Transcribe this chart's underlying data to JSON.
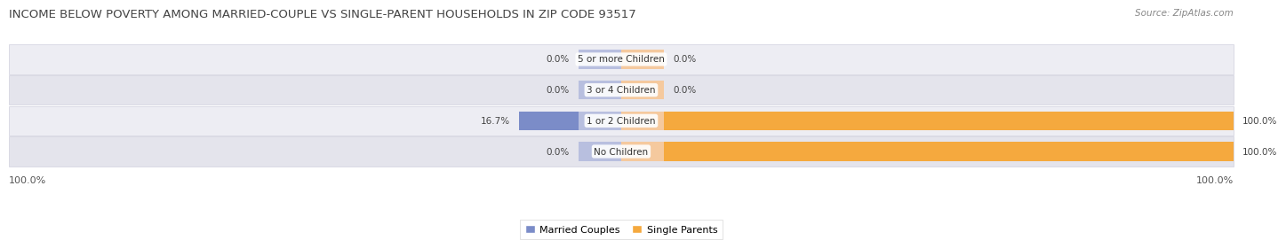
{
  "title": "INCOME BELOW POVERTY AMONG MARRIED-COUPLE VS SINGLE-PARENT HOUSEHOLDS IN ZIP CODE 93517",
  "source": "Source: ZipAtlas.com",
  "categories": [
    "No Children",
    "1 or 2 Children",
    "3 or 4 Children",
    "5 or more Children"
  ],
  "married_couples": [
    0.0,
    16.7,
    0.0,
    0.0
  ],
  "single_parents": [
    100.0,
    100.0,
    0.0,
    0.0
  ],
  "married_color": "#7b8cc8",
  "married_color_light": "#b8bfdf",
  "single_color": "#f5a93e",
  "single_color_light": "#f5c99e",
  "row_bg_even": "#ededf3",
  "row_bg_odd": "#e4e4ec",
  "row_border": "#d0d0de",
  "title_fontsize": 9.5,
  "source_fontsize": 7.5,
  "label_fontsize": 7.5,
  "category_fontsize": 7.5,
  "legend_fontsize": 8,
  "axis_label_fontsize": 8,
  "background_color": "#ffffff",
  "left_label": "100.0%",
  "right_label": "100.0%",
  "zero_bar_size": 7.0,
  "full_bar_max": 100.0
}
